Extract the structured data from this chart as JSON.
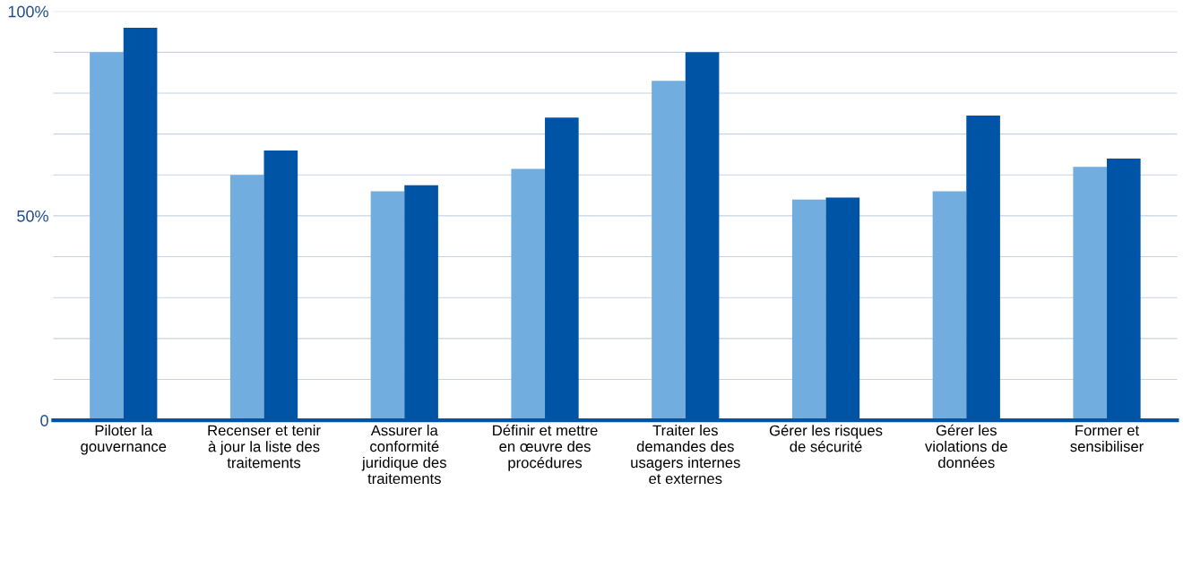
{
  "chart_data": {
    "type": "bar",
    "categories": [
      "Piloter la\ngouvernance",
      "Recenser et tenir\nà jour la liste des\ntraitements",
      "Assurer la\nconformité\njuridique des\ntraitements",
      "Définir et mettre\nen œuvre des\nprocédures",
      "Traiter les\ndemandes des\nusagers internes\net externes",
      "Gérer les risques\nde sécurité",
      "Gérer les\nviolations de\ndonnées",
      "Former et\nsensibiliser"
    ],
    "series": [
      {
        "color": "#72ade0",
        "values": [
          90,
          60,
          56,
          61.5,
          83,
          54,
          56,
          62
        ]
      },
      {
        "color": "#0054a6",
        "values": [
          96,
          66,
          57.5,
          74,
          90,
          54.5,
          74.5,
          64
        ]
      }
    ],
    "ylim": [
      0,
      100
    ],
    "yticks": [
      {
        "value": 0,
        "label": "0"
      },
      {
        "value": 10,
        "label": null
      },
      {
        "value": 20,
        "label": null
      },
      {
        "value": 30,
        "label": null
      },
      {
        "value": 40,
        "label": null
      },
      {
        "value": 50,
        "label": "50%"
      },
      {
        "value": 60,
        "label": null
      },
      {
        "value": 70,
        "label": null
      },
      {
        "value": 80,
        "label": null
      },
      {
        "value": 90,
        "label": null
      },
      {
        "value": 100,
        "label": "100%"
      }
    ],
    "grid": "y"
  }
}
